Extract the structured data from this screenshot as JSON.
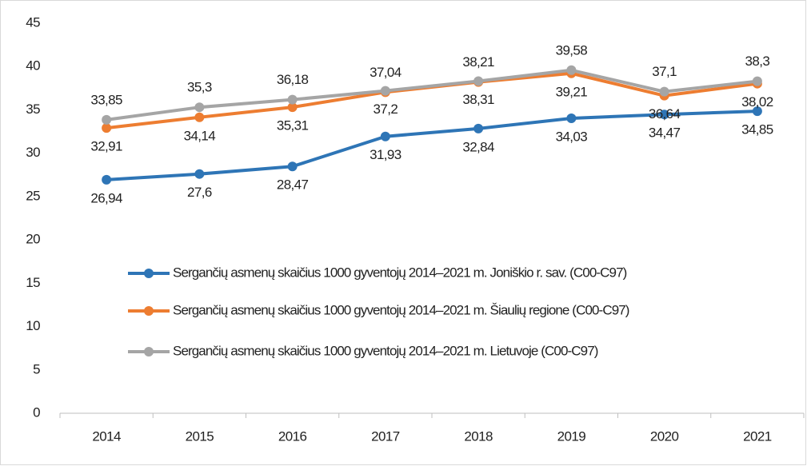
{
  "chart_data": {
    "type": "line",
    "categories": [
      "2014",
      "2015",
      "2016",
      "2017",
      "2018",
      "2019",
      "2020",
      "2021"
    ],
    "series": [
      {
        "name": "Sergančių asmenų skaičius 1000 gyventojų 2014–2021 m. Joniškio r. sav. (C00-C97)",
        "color": "#2e75b6",
        "values": [
          26.94,
          27.6,
          28.47,
          31.93,
          32.84,
          34.03,
          34.47,
          34.85
        ],
        "value_labels": [
          "26,94",
          "27,6",
          "28,47",
          "31,93",
          "32,84",
          "34,03",
          "34,47",
          "34,85"
        ]
      },
      {
        "name": "Sergančių asmenų skaičius 1000 gyventojų 2014–2021 m. Šiaulių regione (C00-C97)",
        "color": "#ed7d31",
        "values": [
          32.91,
          34.14,
          35.31,
          37.04,
          38.21,
          39.21,
          36.64,
          38.02
        ],
        "value_labels": [
          "32,91",
          "34,14",
          "35,31",
          "37,04",
          "38,21",
          "39,21",
          "36,64",
          "38,02"
        ]
      },
      {
        "name": "Sergančių asmenų skaičius 1000 gyventojų 2014–2021 m. Lietuvoje (C00-C97)",
        "color": "#a5a5a5",
        "values": [
          33.85,
          35.3,
          36.18,
          37.2,
          38.31,
          39.58,
          37.1,
          38.3
        ],
        "value_labels": [
          "33,85",
          "35,3",
          "36,18",
          "37,2",
          "38,31",
          "39,58",
          "37,1",
          "38,3"
        ]
      }
    ],
    "ylim": [
      0,
      45
    ],
    "yticks": [
      0,
      5,
      10,
      15,
      20,
      25,
      30,
      35,
      40,
      45
    ],
    "grid": false
  }
}
